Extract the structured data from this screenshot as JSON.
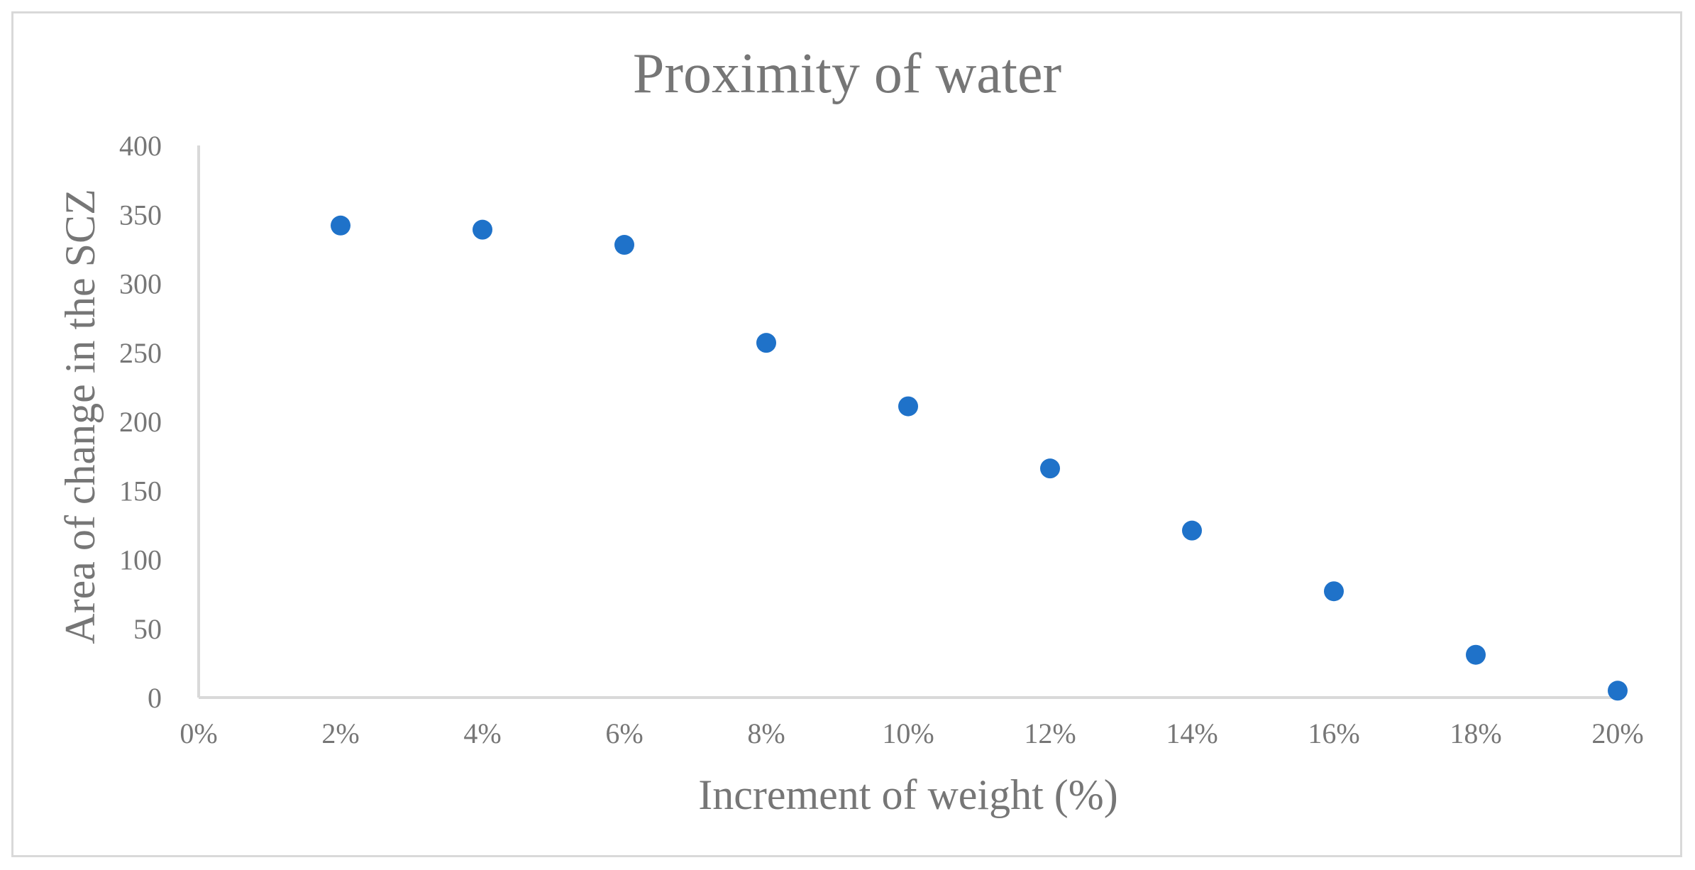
{
  "chart_data": {
    "type": "scatter",
    "title": "Proximity of water",
    "xlabel": "Increment of weight (%)",
    "ylabel": "Area of change in the SCZ",
    "xlim": [
      0,
      20
    ],
    "ylim": [
      0,
      400
    ],
    "x_ticks": [
      0,
      2,
      4,
      6,
      8,
      10,
      12,
      14,
      16,
      18,
      20
    ],
    "x_tick_labels": [
      "0%",
      "2%",
      "4%",
      "6%",
      "8%",
      "10%",
      "12%",
      "14%",
      "16%",
      "18%",
      "20%"
    ],
    "y_ticks": [
      0,
      50,
      100,
      150,
      200,
      250,
      300,
      350,
      400
    ],
    "y_tick_labels": [
      "0",
      "50",
      "100",
      "150",
      "200",
      "250",
      "300",
      "350",
      "400"
    ],
    "grid": false,
    "legend": "none",
    "series": [
      {
        "name": "Proximity of water",
        "color": "#1f72c9",
        "x": [
          2,
          4,
          6,
          8,
          10,
          12,
          14,
          16,
          18,
          20
        ],
        "y": [
          342,
          339,
          328,
          257,
          211,
          166,
          121,
          77,
          31,
          5
        ]
      }
    ]
  }
}
